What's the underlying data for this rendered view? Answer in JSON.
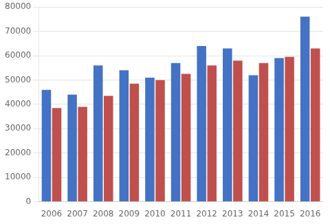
{
  "chart_data": {
    "type": "bar",
    "categories": [
      "2006",
      "2007",
      "2008",
      "2009",
      "2010",
      "2011",
      "2012",
      "2013",
      "2014",
      "2015",
      "2016"
    ],
    "series": [
      {
        "color": "#4472C4",
        "values": [
          46000,
          44000,
          56000,
          54000,
          51000,
          57000,
          64000,
          63000,
          52000,
          59000,
          76000
        ]
      },
      {
        "color": "#C0504D",
        "values": [
          38500,
          39000,
          43500,
          48500,
          50000,
          52500,
          56000,
          58000,
          57000,
          59500,
          63000
        ]
      }
    ],
    "ylim": [
      0,
      80000
    ],
    "yticks": [
      0,
      10000,
      20000,
      30000,
      40000,
      50000,
      60000,
      70000,
      80000
    ],
    "grid": true
  }
}
